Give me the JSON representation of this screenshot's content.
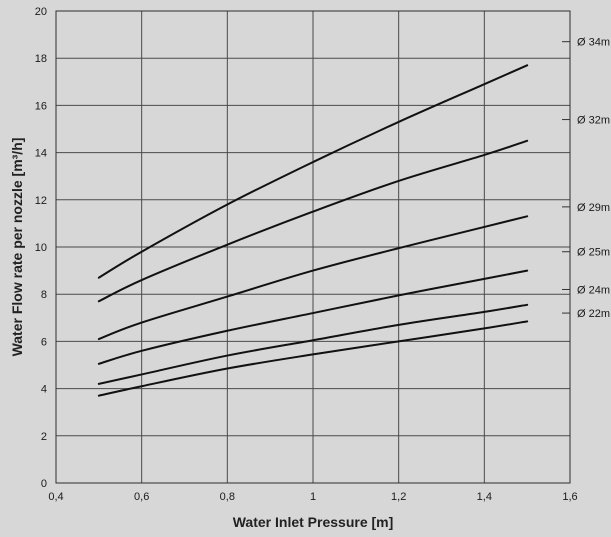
{
  "chart_data": {
    "type": "line",
    "xlabel": "Water Inlet Pressure [m]",
    "ylabel": "Water Flow rate per nozzle [m³/h]",
    "xlim": [
      0.4,
      1.6
    ],
    "ylim": [
      0,
      20
    ],
    "x_ticks": [
      0.4,
      0.6,
      0.8,
      1.0,
      1.2,
      1.4,
      1.6
    ],
    "x_tick_labels": [
      "0,4",
      "0,6",
      "0,8",
      "1",
      "1,2",
      "1,4",
      "1,6"
    ],
    "y_ticks": [
      0,
      2,
      4,
      6,
      8,
      10,
      12,
      14,
      16,
      18,
      20
    ],
    "y_tick_labels": [
      "0",
      "2",
      "4",
      "6",
      "8",
      "10",
      "12",
      "14",
      "16",
      "18",
      "20"
    ],
    "grid": true,
    "legend": "right-edge labels",
    "series": [
      {
        "name": "Ø 34m",
        "x": [
          0.5,
          0.6,
          0.8,
          1.0,
          1.2,
          1.4,
          1.5
        ],
        "y": [
          8.7,
          9.8,
          11.8,
          13.6,
          15.3,
          16.9,
          17.7
        ]
      },
      {
        "name": "Ø 32m",
        "x": [
          0.5,
          0.6,
          0.8,
          1.0,
          1.2,
          1.4,
          1.5
        ],
        "y": [
          7.7,
          8.6,
          10.1,
          11.5,
          12.8,
          13.9,
          14.5
        ]
      },
      {
        "name": "Ø 29m",
        "x": [
          0.5,
          0.6,
          0.8,
          1.0,
          1.2,
          1.4,
          1.5
        ],
        "y": [
          6.1,
          6.8,
          7.9,
          9.0,
          9.95,
          10.85,
          11.3
        ]
      },
      {
        "name": "Ø 25m",
        "x": [
          0.5,
          0.6,
          0.8,
          1.0,
          1.2,
          1.4,
          1.5
        ],
        "y": [
          5.05,
          5.6,
          6.45,
          7.2,
          7.95,
          8.65,
          9.0
        ]
      },
      {
        "name": "Ø 24m",
        "x": [
          0.5,
          0.6,
          0.8,
          1.0,
          1.2,
          1.4,
          1.5
        ],
        "y": [
          4.2,
          4.6,
          5.4,
          6.05,
          6.7,
          7.25,
          7.55
        ]
      },
      {
        "name": "Ø 22m",
        "x": [
          0.5,
          0.6,
          0.8,
          1.0,
          1.2,
          1.4,
          1.5
        ],
        "y": [
          3.7,
          4.1,
          4.85,
          5.45,
          6.0,
          6.55,
          6.85
        ]
      }
    ]
  }
}
